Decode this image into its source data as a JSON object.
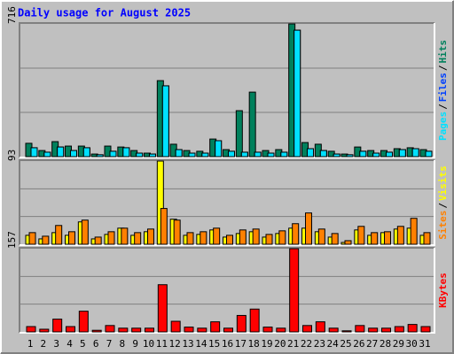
{
  "chart_data": [
    {
      "type": "bar",
      "title": "Daily usage for August 2025",
      "legend_separator": "/",
      "ylim": [
        0,
        716
      ],
      "yticks": [
        716
      ],
      "grid": true,
      "series": [
        {
          "name": "Pages",
          "color": "#00e0ff",
          "values": [
            48,
            24,
            52,
            33,
            48,
            10,
            29,
            48,
            19,
            14,
            382,
            38,
            19,
            19,
            86,
            29,
            24,
            24,
            19,
            24,
            682,
            43,
            33,
            14,
            10,
            29,
            19,
            24,
            38,
            43,
            29
          ]
        },
        {
          "name": "Files",
          "color": "#0040ff",
          "values": [
            48,
            24,
            52,
            33,
            48,
            10,
            29,
            48,
            19,
            14,
            382,
            38,
            19,
            19,
            86,
            29,
            24,
            24,
            19,
            24,
            682,
            43,
            33,
            14,
            10,
            29,
            19,
            24,
            38,
            43,
            29
          ]
        },
        {
          "name": "Hits",
          "color": "#00805c",
          "values": [
            72,
            33,
            81,
            57,
            57,
            14,
            57,
            52,
            33,
            19,
            410,
            67,
            33,
            29,
            95,
            38,
            248,
            348,
            33,
            38,
            716,
            76,
            67,
            29,
            14,
            52,
            33,
            33,
            43,
            48,
            38
          ]
        }
      ]
    },
    {
      "type": "bar",
      "legend_separator": "/",
      "ylim": [
        0,
        93
      ],
      "yticks": [
        93
      ],
      "grid": true,
      "series": [
        {
          "name": "Sites",
          "color": "#ff8000",
          "values": [
            13,
            9,
            21,
            14,
            27,
            8,
            14,
            18,
            13,
            17,
            40,
            27,
            13,
            14,
            18,
            10,
            16,
            17,
            11,
            15,
            23,
            35,
            17,
            12,
            4,
            20,
            13,
            14,
            20,
            29,
            13
          ]
        },
        {
          "name": "Visits",
          "color": "#ffff00",
          "values": [
            10,
            6,
            13,
            10,
            25,
            6,
            11,
            18,
            10,
            14,
            93,
            28,
            10,
            11,
            16,
            8,
            12,
            14,
            8,
            12,
            18,
            18,
            14,
            8,
            2,
            16,
            10,
            13,
            17,
            18,
            10
          ]
        }
      ]
    },
    {
      "type": "bar",
      "ylim": [
        0,
        157
      ],
      "yticks": [
        157
      ],
      "grid": true,
      "categories": [
        "1",
        "2",
        "3",
        "4",
        "5",
        "6",
        "7",
        "8",
        "9",
        "10",
        "11",
        "12",
        "13",
        "14",
        "15",
        "16",
        "17",
        "18",
        "19",
        "20",
        "21",
        "22",
        "23",
        "24",
        "25",
        "26",
        "27",
        "28",
        "29",
        "30",
        "31"
      ],
      "category_colors": [
        "#000000",
        "#008040",
        "#008040",
        "#000000",
        "#000000",
        "#000000",
        "#000000",
        "#000000",
        "#008040",
        "#008040",
        "#000000",
        "#000000",
        "#000000",
        "#000000",
        "#000000",
        "#008040",
        "#008040",
        "#000000",
        "#000000",
        "#000000",
        "#000000",
        "#000000",
        "#008040",
        "#008040",
        "#000000",
        "#000000",
        "#000000",
        "#000000",
        "#000000",
        "#008040",
        "#008040"
      ],
      "series": [
        {
          "name": "KBytes",
          "color": "#ff0000",
          "values": [
            10,
            5,
            24,
            10,
            39,
            3,
            12,
            7,
            7,
            7,
            89,
            20,
            9,
            7,
            19,
            7,
            31,
            43,
            9,
            7,
            157,
            12,
            19,
            7,
            2,
            12,
            7,
            7,
            10,
            14,
            10
          ]
        }
      ]
    }
  ]
}
